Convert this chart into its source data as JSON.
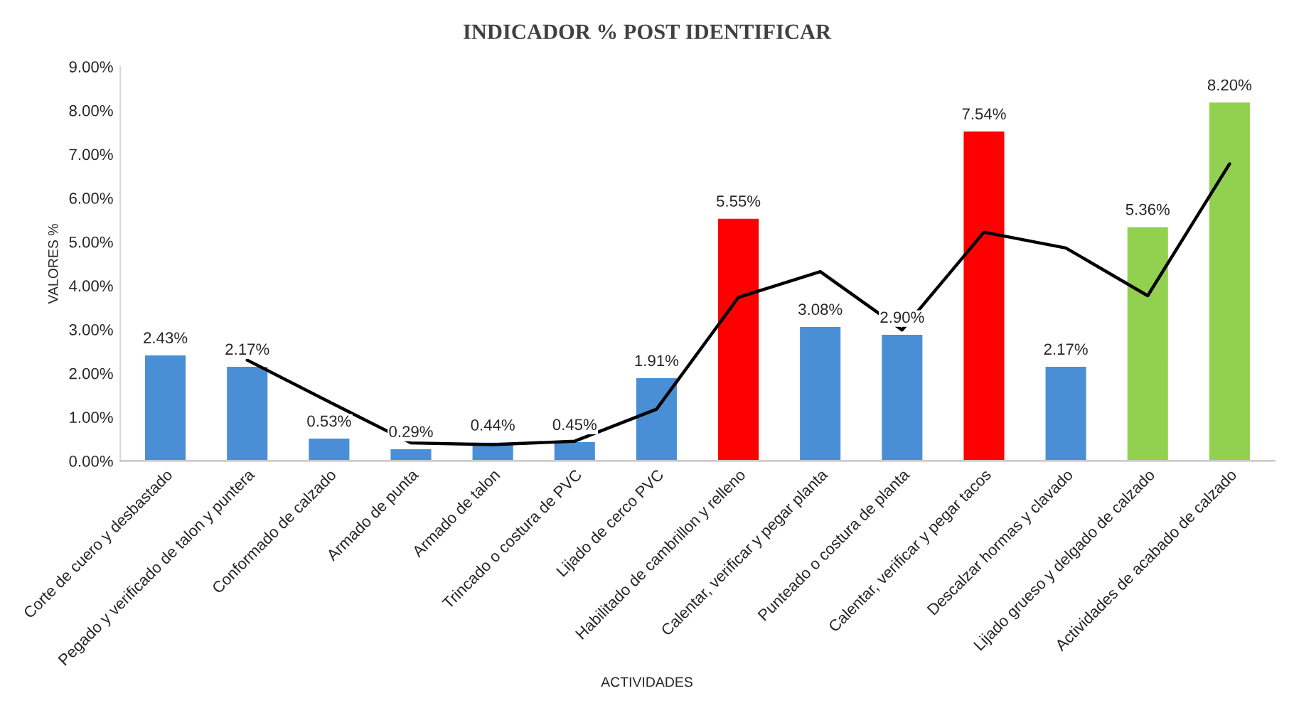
{
  "chart_data": {
    "type": "bar",
    "title": "INDICADOR % POST IDENTIFICAR",
    "xlabel": "ACTIVIDADES",
    "ylabel": "VALORES %",
    "categories": [
      "Corte de cuero y desbastado",
      "Pegado y verificado de talon y puntera",
      "Conformado de calzado",
      "Armado de punta",
      "Armado de talon",
      "Trincado o costura de PVC",
      "Lijado de cerco PVC",
      "Habilitado de cambrillon y relleno",
      "Calentar, verificar y pegar planta",
      "Punteado o costura de planta",
      "Calentar, verificar y pegar tacos",
      "Descalzar hormas y clavado",
      "Lijado grueso y delgado de calzado",
      "Actividades de acabado de calzado"
    ],
    "series": [
      {
        "values": [
          2.43,
          2.17,
          0.53,
          0.29,
          0.44,
          0.45,
          1.91,
          5.55,
          3.08,
          2.9,
          7.54,
          2.17,
          5.36,
          8.2
        ],
        "colors": [
          "#4a8fd6",
          "#4a8fd6",
          "#4a8fd6",
          "#4a8fd6",
          "#4a8fd6",
          "#4a8fd6",
          "#4a8fd6",
          "#ff0000",
          "#4a8fd6",
          "#4a8fd6",
          "#ff0000",
          "#4a8fd6",
          "#92d050",
          "#92d050"
        ],
        "value_labels": [
          "2.43%",
          "2.17%",
          "0.53%",
          "0.29%",
          "0.44%",
          "0.45%",
          "1.91%",
          "5.55%",
          "3.08%",
          "2.90%",
          "7.54%",
          "2.17%",
          "5.36%",
          "8.20%"
        ]
      },
      {
        "type": "line",
        "color": "#000000",
        "values": [
          null,
          2.3,
          1.35,
          0.41,
          0.37,
          0.45,
          1.18,
          3.73,
          4.32,
          2.99,
          5.22,
          4.86,
          3.77,
          6.78
        ]
      }
    ],
    "ylim": [
      0,
      9
    ],
    "yticks": [
      {
        "value": 0,
        "label": "0.00%"
      },
      {
        "value": 1,
        "label": "1.00%"
      },
      {
        "value": 2,
        "label": "2.00%"
      },
      {
        "value": 3,
        "label": "3.00%"
      },
      {
        "value": 4,
        "label": "4.00%"
      },
      {
        "value": 5,
        "label": "5.00%"
      },
      {
        "value": 6,
        "label": "6.00%"
      },
      {
        "value": 7,
        "label": "7.00%"
      },
      {
        "value": 8,
        "label": "8.00%"
      },
      {
        "value": 9,
        "label": "9.00%"
      }
    ],
    "grid": false,
    "legend": false
  }
}
